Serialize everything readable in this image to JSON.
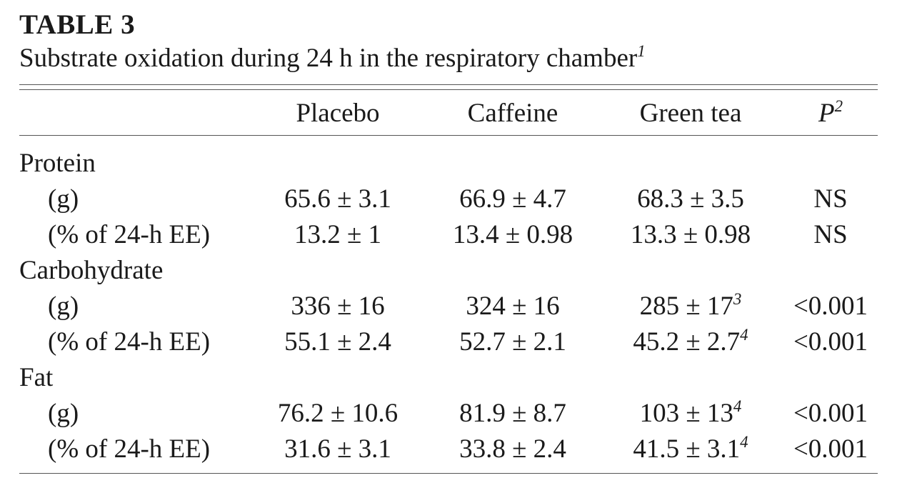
{
  "table_label": "TABLE 3",
  "caption": {
    "text": "Substrate oxidation during 24 h in the respiratory chamber",
    "note": "1"
  },
  "headers": {
    "col1": "",
    "placebo": "Placebo",
    "caffeine": "Caffeine",
    "green_tea": "Green tea",
    "p": "P",
    "p_note": "2"
  },
  "groups": [
    {
      "label": "Protein",
      "rows": [
        {
          "label": "(g)",
          "placebo": "65.6 ± 3.1",
          "caffeine": "66.9 ± 4.7",
          "green_tea": "68.3 ± 3.5",
          "green_tea_note": "",
          "p": "NS"
        },
        {
          "label": "(% of 24-h EE)",
          "placebo": "13.2 ± 1",
          "caffeine": "13.4 ± 0.98",
          "green_tea": "13.3 ± 0.98",
          "green_tea_note": "",
          "p": "NS"
        }
      ]
    },
    {
      "label": "Carbohydrate",
      "rows": [
        {
          "label": "(g)",
          "placebo": "336 ± 16",
          "caffeine": "324 ± 16",
          "green_tea": "285 ± 17",
          "green_tea_note": "3",
          "p": "<0.001"
        },
        {
          "label": "(% of 24-h EE)",
          "placebo": "55.1 ± 2.4",
          "caffeine": "52.7 ± 2.1",
          "green_tea": "45.2 ± 2.7",
          "green_tea_note": "4",
          "p": "<0.001"
        }
      ]
    },
    {
      "label": "Fat",
      "rows": [
        {
          "label": "(g)",
          "placebo": "76.2 ± 10.6",
          "caffeine": "81.9 ± 8.7",
          "green_tea": "103 ± 13",
          "green_tea_note": "4",
          "p": "<0.001"
        },
        {
          "label": "(% of 24-h EE)",
          "placebo": "31.6 ± 3.1",
          "caffeine": "33.8 ± 2.4",
          "green_tea": "41.5 ± 3.1",
          "green_tea_note": "4",
          "p": "<0.001"
        }
      ]
    }
  ]
}
